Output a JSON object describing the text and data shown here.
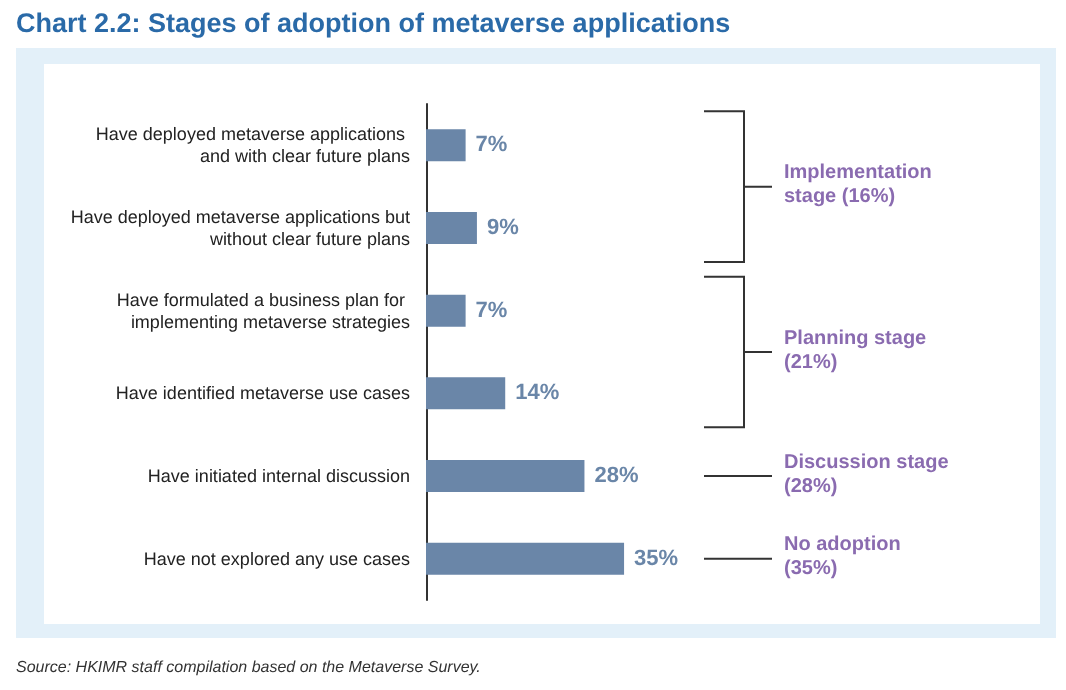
{
  "chart_data": {
    "type": "bar",
    "orientation": "horizontal",
    "title": "Chart 2.2: Stages of adoption of metaverse applications",
    "categories": [
      "Have deployed metaverse applications and with clear future plans",
      "Have deployed metaverse applications but without clear future plans",
      "Have formulated a business plan for implementing metaverse strategies",
      "Have identified metaverse use cases",
      "Have initiated internal discussion",
      "Have not explored any use cases"
    ],
    "values": [
      7,
      9,
      7,
      14,
      28,
      35
    ],
    "value_labels": [
      "7%",
      "9%",
      "7%",
      "14%",
      "28%",
      "35%"
    ],
    "color": "#6a86a8",
    "annotations": [
      "Implementation stage (16%)",
      "Planning stage (21%)",
      "Discussion stage (28%)",
      "No adoption (35%)",
      "Source: HKIMR staff compilation based on the Metaverse Survey."
    ]
  }
}
